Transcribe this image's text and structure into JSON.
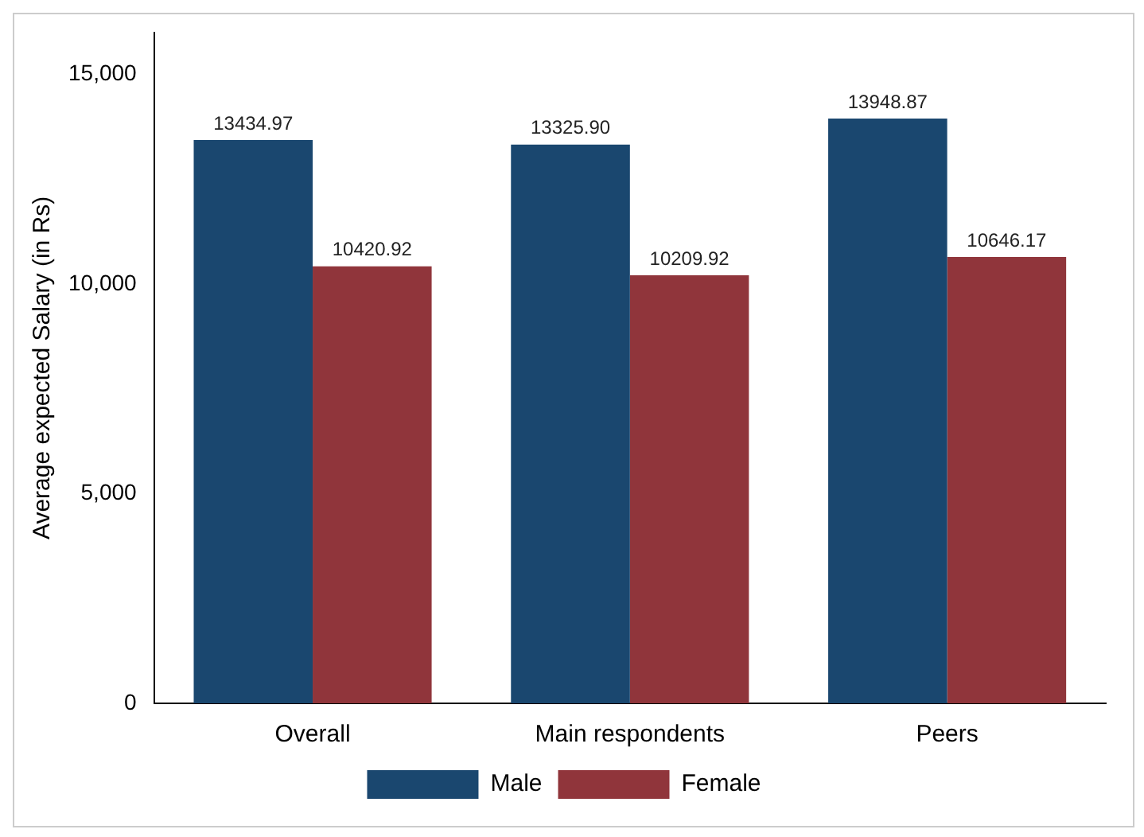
{
  "chart_data": {
    "type": "bar",
    "ylabel": "Average expected Salary (in Rs)",
    "categories": [
      "Overall",
      "Main respondents",
      "Peers"
    ],
    "series": [
      {
        "name": "Male",
        "color": "#1a476f",
        "values": [
          13434.97,
          13325.9,
          13948.87
        ],
        "value_labels": [
          "13434.97",
          "13325.90",
          "13948.87"
        ]
      },
      {
        "name": "Female",
        "color": "#90353b",
        "values": [
          10420.92,
          10209.92,
          10646.17
        ],
        "value_labels": [
          "10420.92",
          "10209.92",
          "10646.17"
        ]
      }
    ],
    "ylim": [
      0,
      16000
    ],
    "yticks": [
      0,
      {
        "value": 5000,
        "label": "5,000"
      },
      {
        "value": 10000,
        "label": "10,000"
      },
      {
        "value": 15000,
        "label": "15,000"
      }
    ],
    "grid": false,
    "legend": "bottom"
  }
}
